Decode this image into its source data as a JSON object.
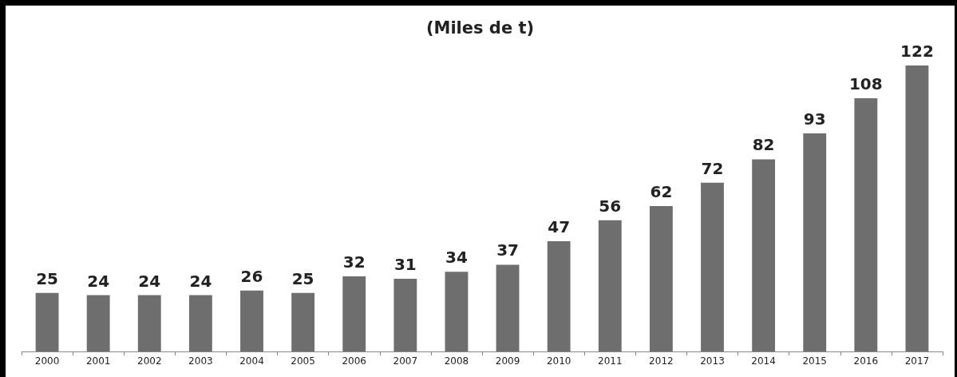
{
  "chart_data": {
    "type": "bar",
    "title": "(Miles de t)",
    "categories": [
      "2000",
      "2001",
      "2002",
      "2003",
      "2004",
      "2005",
      "2006",
      "2007",
      "2008",
      "2009",
      "2010",
      "2011",
      "2012",
      "2013",
      "2014",
      "2015",
      "2016",
      "2017"
    ],
    "values": [
      25,
      24,
      24,
      24,
      26,
      25,
      32,
      31,
      34,
      37,
      47,
      56,
      62,
      72,
      82,
      93,
      108,
      122
    ],
    "color": "#6e6e6e",
    "data_labels": true
  }
}
